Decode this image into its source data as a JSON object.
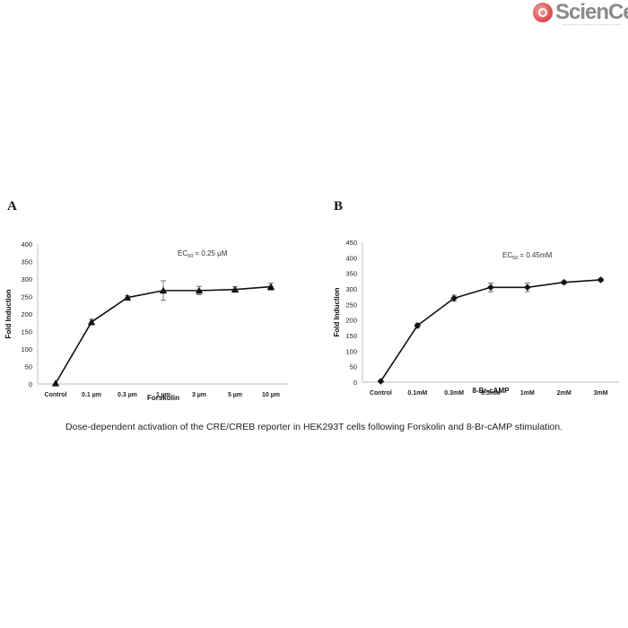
{
  "logo": {
    "text": "ScienCell",
    "icon": "sciencell-logo-icon"
  },
  "caption": "Dose-dependent activation of the CRE/CREB reporter in HEK293T cells following Forskolin and 8-Br-cAMP stimulation.",
  "chart_data": [
    {
      "panel": "A",
      "type": "line",
      "marker": "triangle",
      "categories": [
        "Control",
        "0.1 µm",
        "0.3 µm",
        "1 µm",
        "3 µm",
        "5 µm",
        "10 µm"
      ],
      "values": [
        2,
        177,
        247,
        267,
        267,
        270,
        278
      ],
      "errors": [
        0,
        8,
        5,
        28,
        12,
        8,
        10
      ],
      "xlabel": "Forskolin",
      "ylabel": "Fold Induction",
      "ylim": [
        0,
        400
      ],
      "yticks": [
        0,
        50,
        100,
        150,
        200,
        250,
        300,
        350,
        400
      ],
      "annotation": {
        "prefix": "EC",
        "sub": "50",
        "suffix": " = 0.25 µM"
      }
    },
    {
      "panel": "B",
      "type": "line",
      "marker": "diamond",
      "categories": [
        "Control",
        "0.1mM",
        "0.3mM",
        "0.5mM",
        "1mM",
        "2mM",
        "3mM"
      ],
      "values": [
        3,
        182,
        270,
        305,
        305,
        321,
        329
      ],
      "errors": [
        0,
        8,
        10,
        14,
        14,
        5,
        5
      ],
      "xlabel": "8-Br-cAMP",
      "ylabel": "Fold Induction",
      "ylim": [
        0,
        450
      ],
      "yticks": [
        0,
        50,
        100,
        150,
        200,
        250,
        300,
        350,
        400,
        450
      ],
      "annotation": {
        "prefix": "EC",
        "sub": "50",
        "suffix": " = 0.45mM"
      }
    }
  ]
}
